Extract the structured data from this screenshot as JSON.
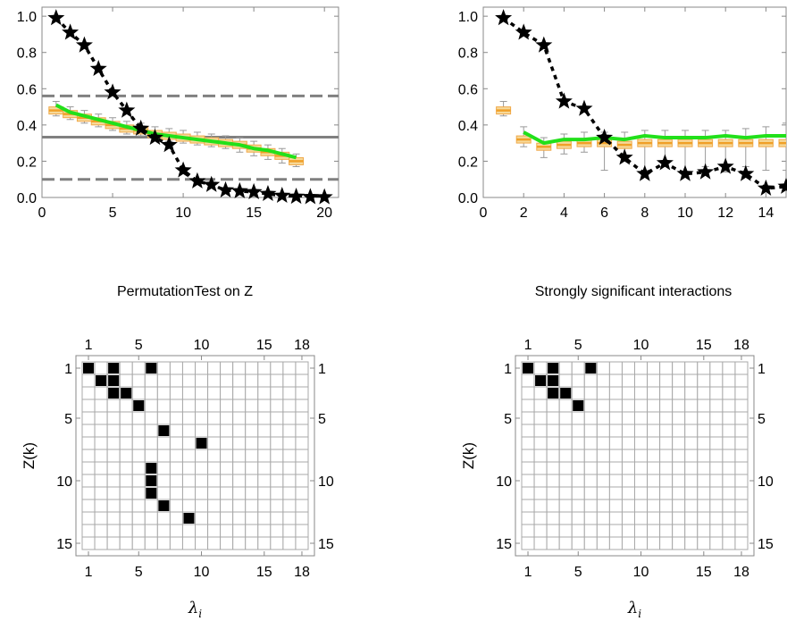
{
  "chart_data": [
    {
      "type": "line",
      "xlim": [
        0,
        21
      ],
      "ylim": [
        0,
        1.05
      ],
      "xticks": [
        0,
        5,
        10,
        15,
        20
      ],
      "yticks": [
        "0.0",
        "0.2",
        "0.4",
        "0.6",
        "0.8",
        "1.0"
      ],
      "grid": false,
      "stars": {
        "x": [
          1,
          2,
          3,
          4,
          5,
          6,
          7,
          8,
          9,
          10,
          11,
          12,
          13,
          14,
          15,
          16,
          17,
          18,
          19,
          20
        ],
        "y": [
          0.99,
          0.91,
          0.84,
          0.71,
          0.58,
          0.48,
          0.38,
          0.33,
          0.29,
          0.15,
          0.09,
          0.07,
          0.04,
          0.035,
          0.03,
          0.02,
          0.01,
          0.005,
          0.003,
          0.002
        ]
      },
      "green_line": {
        "x": [
          1,
          2,
          3,
          4,
          5,
          6,
          7,
          8,
          9,
          10,
          11,
          12,
          13,
          14,
          15,
          16,
          17,
          18
        ],
        "y": [
          0.51,
          0.47,
          0.45,
          0.43,
          0.41,
          0.39,
          0.37,
          0.35,
          0.34,
          0.33,
          0.32,
          0.31,
          0.3,
          0.29,
          0.27,
          0.26,
          0.24,
          0.22
        ]
      },
      "boxes": {
        "x": [
          1,
          2,
          3,
          4,
          5,
          6,
          7,
          8,
          9,
          10,
          11,
          12,
          13,
          14,
          15,
          16,
          17,
          18
        ],
        "median": [
          0.48,
          0.46,
          0.44,
          0.42,
          0.4,
          0.38,
          0.37,
          0.35,
          0.34,
          0.33,
          0.32,
          0.31,
          0.3,
          0.29,
          0.27,
          0.25,
          0.23,
          0.2
        ],
        "low": [
          0.45,
          0.43,
          0.41,
          0.39,
          0.37,
          0.35,
          0.34,
          0.32,
          0.31,
          0.3,
          0.29,
          0.28,
          0.27,
          0.25,
          0.23,
          0.21,
          0.19,
          0.17
        ],
        "high": [
          0.53,
          0.5,
          0.48,
          0.46,
          0.44,
          0.42,
          0.41,
          0.39,
          0.38,
          0.37,
          0.36,
          0.35,
          0.34,
          0.33,
          0.31,
          0.29,
          0.27,
          0.24
        ]
      },
      "hlines": [
        {
          "y": 0.56,
          "style": "dashed"
        },
        {
          "y": 0.333,
          "style": "solid"
        },
        {
          "y": 0.1,
          "style": "dashed"
        }
      ]
    },
    {
      "type": "line",
      "xlim": [
        0,
        15
      ],
      "ylim": [
        0,
        1.05
      ],
      "xticks": [
        0,
        2,
        4,
        6,
        8,
        10,
        12,
        14
      ],
      "yticks": [
        "0.0",
        "0.2",
        "0.4",
        "0.6",
        "0.8",
        "1.0"
      ],
      "grid": false,
      "stars": {
        "x": [
          1,
          2,
          3,
          4,
          5,
          6,
          7,
          8,
          9,
          10,
          11,
          12,
          13,
          14,
          15
        ],
        "y": [
          0.99,
          0.91,
          0.84,
          0.53,
          0.49,
          0.33,
          0.22,
          0.13,
          0.19,
          0.13,
          0.14,
          0.17,
          0.13,
          0.05,
          0.06
        ]
      },
      "green_line": {
        "x": [
          2,
          3,
          4,
          5,
          6,
          7,
          8,
          9,
          10,
          11,
          12,
          13,
          14,
          15
        ],
        "y": [
          0.36,
          0.3,
          0.32,
          0.32,
          0.33,
          0.32,
          0.34,
          0.33,
          0.33,
          0.33,
          0.34,
          0.33,
          0.34,
          0.34
        ]
      },
      "boxes": {
        "x": [
          1,
          2,
          3,
          4,
          5,
          6,
          7,
          8,
          9,
          10,
          11,
          12,
          13,
          14,
          15
        ],
        "median": [
          0.48,
          0.32,
          0.28,
          0.29,
          0.3,
          0.3,
          0.29,
          0.3,
          0.3,
          0.3,
          0.3,
          0.3,
          0.3,
          0.3,
          0.3
        ],
        "low": [
          0.45,
          0.28,
          0.22,
          0.24,
          0.25,
          0.15,
          0.23,
          0.15,
          0.17,
          0.14,
          0.17,
          0.14,
          0.17,
          0.15,
          0.15
        ],
        "high": [
          0.53,
          0.39,
          0.33,
          0.35,
          0.36,
          0.36,
          0.36,
          0.37,
          0.37,
          0.37,
          0.37,
          0.37,
          0.38,
          0.39,
          0.41
        ]
      },
      "hlines": []
    },
    {
      "type": "heatmap",
      "title": "PermutationTest on Z",
      "xlabel_base": "λ",
      "xlabel_sub": "i",
      "ylabel": "Z(k)",
      "cols": 18,
      "rows": 15,
      "xticks": [
        "1",
        "5",
        "10",
        "15",
        "18"
      ],
      "xtick_cols": [
        1,
        5,
        10,
        15,
        18
      ],
      "yticks": [
        "1",
        "5",
        "10",
        "15"
      ],
      "ytick_rows": [
        1,
        5,
        10,
        15
      ],
      "filled": [
        [
          1,
          1
        ],
        [
          3,
          1
        ],
        [
          6,
          1
        ],
        [
          2,
          2
        ],
        [
          3,
          2
        ],
        [
          3,
          3
        ],
        [
          4,
          3
        ],
        [
          5,
          4
        ],
        [
          7,
          6
        ],
        [
          10,
          7
        ],
        [
          6,
          9
        ],
        [
          6,
          10
        ],
        [
          6,
          11
        ],
        [
          7,
          12
        ],
        [
          9,
          13
        ]
      ]
    },
    {
      "type": "heatmap",
      "title": "Strongly significant interactions",
      "xlabel_base": "λ",
      "xlabel_sub": "i",
      "ylabel": "Z(k)",
      "cols": 18,
      "rows": 15,
      "xticks": [
        "1",
        "5",
        "10",
        "15",
        "18"
      ],
      "xtick_cols": [
        1,
        5,
        10,
        15,
        18
      ],
      "yticks": [
        "1",
        "5",
        "10",
        "15"
      ],
      "ytick_rows": [
        1,
        5,
        10,
        15
      ],
      "filled": [
        [
          1,
          1
        ],
        [
          3,
          1
        ],
        [
          6,
          1
        ],
        [
          2,
          2
        ],
        [
          3,
          2
        ],
        [
          3,
          3
        ],
        [
          4,
          3
        ],
        [
          5,
          4
        ]
      ]
    }
  ]
}
